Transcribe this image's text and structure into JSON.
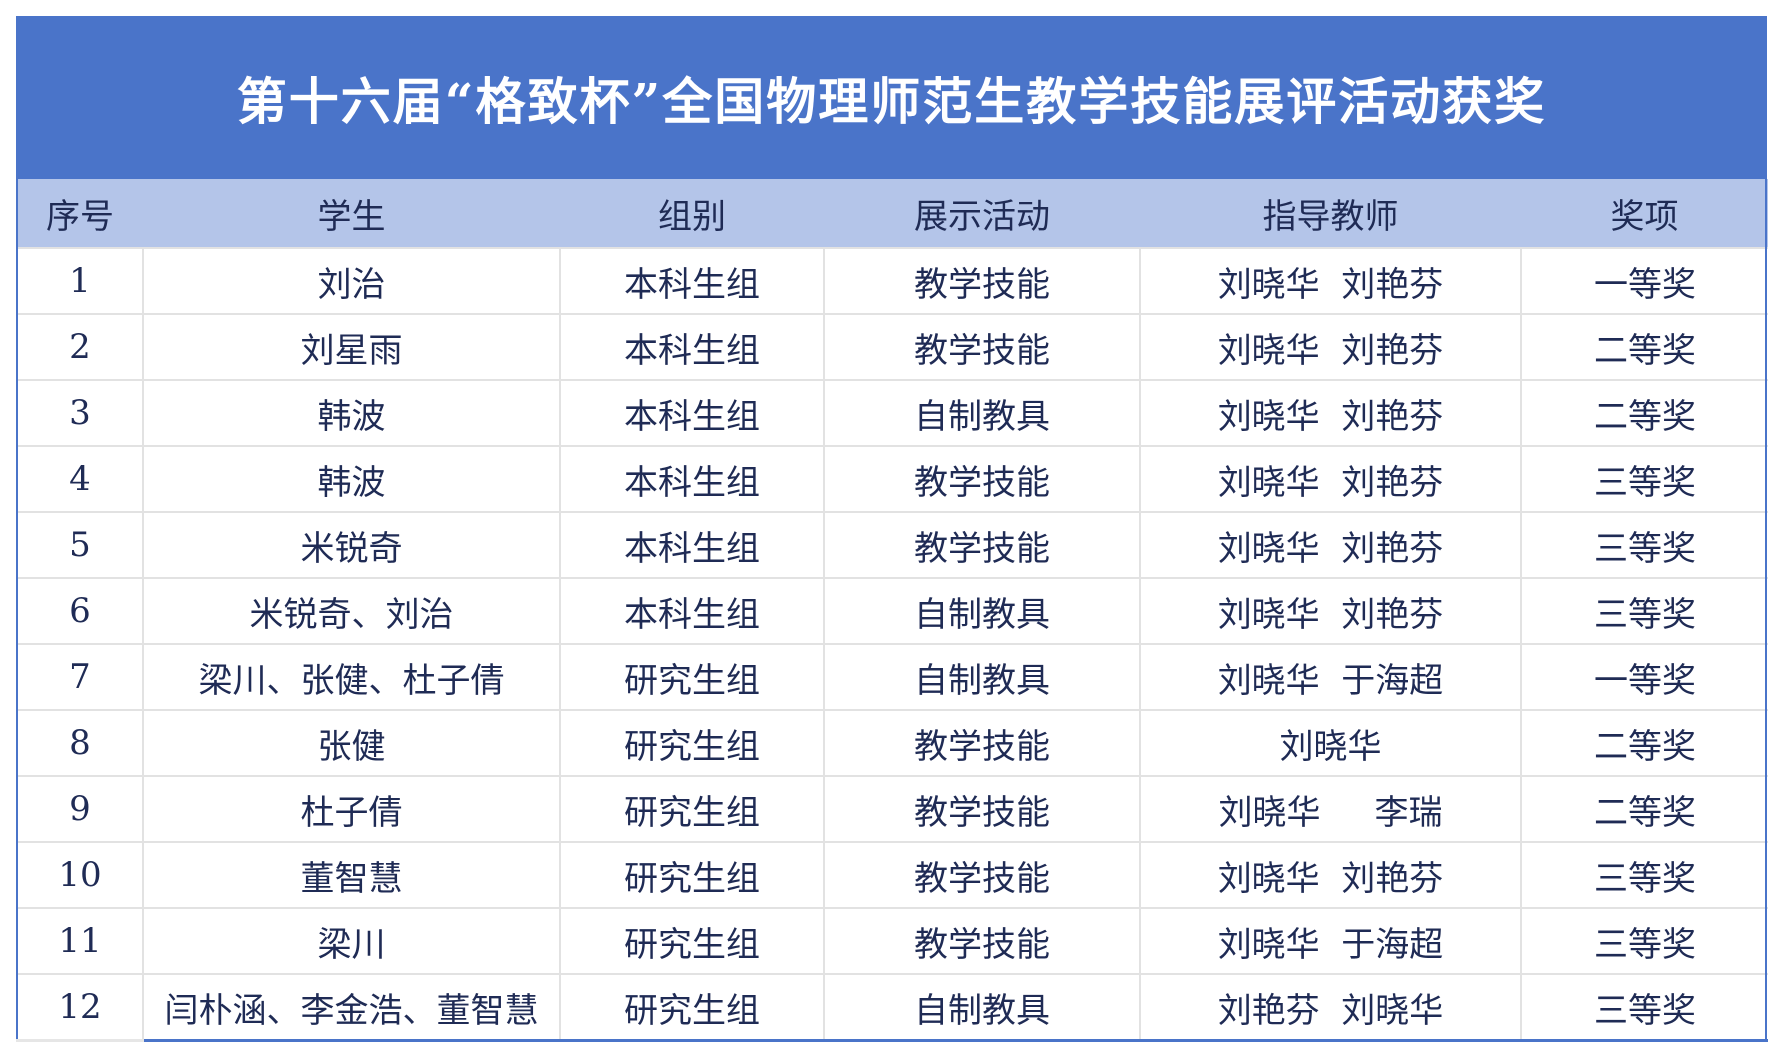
{
  "title": "第十六届“格致杯”全国物理师范生教学技能展评活动获奖",
  "columns": [
    "序号",
    "学生",
    "组别",
    "展示活动",
    "指导教师",
    "奖项"
  ],
  "rows": [
    [
      "1",
      "刘治",
      "本科生组",
      "教学技能",
      "刘晓华  刘艳芬",
      "一等奖"
    ],
    [
      "2",
      "刘星雨",
      "本科生组",
      "教学技能",
      "刘晓华  刘艳芬",
      "二等奖"
    ],
    [
      "3",
      "韩波",
      "本科生组",
      "自制教具",
      "刘晓华  刘艳芬",
      "二等奖"
    ],
    [
      "4",
      "韩波",
      "本科生组",
      "教学技能",
      "刘晓华  刘艳芬",
      "三等奖"
    ],
    [
      "5",
      "米锐奇",
      "本科生组",
      "教学技能",
      "刘晓华  刘艳芬",
      "三等奖"
    ],
    [
      "6",
      "米锐奇、刘治",
      "本科生组",
      "自制教具",
      "刘晓华  刘艳芬",
      "三等奖"
    ],
    [
      "7",
      "梁川、张健、杜子倩",
      "研究生组",
      "自制教具",
      "刘晓华  于海超",
      "一等奖"
    ],
    [
      "8",
      "张健",
      "研究生组",
      "教学技能",
      "刘晓华",
      "二等奖"
    ],
    [
      "9",
      "杜子倩",
      "研究生组",
      "教学技能",
      "刘晓华     李瑞",
      "二等奖"
    ],
    [
      "10",
      "董智慧",
      "研究生组",
      "教学技能",
      "刘晓华  刘艳芬",
      "三等奖"
    ],
    [
      "11",
      "梁川",
      "研究生组",
      "教学技能",
      "刘晓华  于海超",
      "三等奖"
    ],
    [
      "12",
      "闫朴涵、李金浩、董智慧",
      "研究生组",
      "自制教具",
      "刘艳芬  刘晓华",
      "三等奖"
    ]
  ],
  "colors": {
    "title_bg": "#4a74c9",
    "header_bg": "#b4c5e9",
    "text": "#1f2b55"
  }
}
